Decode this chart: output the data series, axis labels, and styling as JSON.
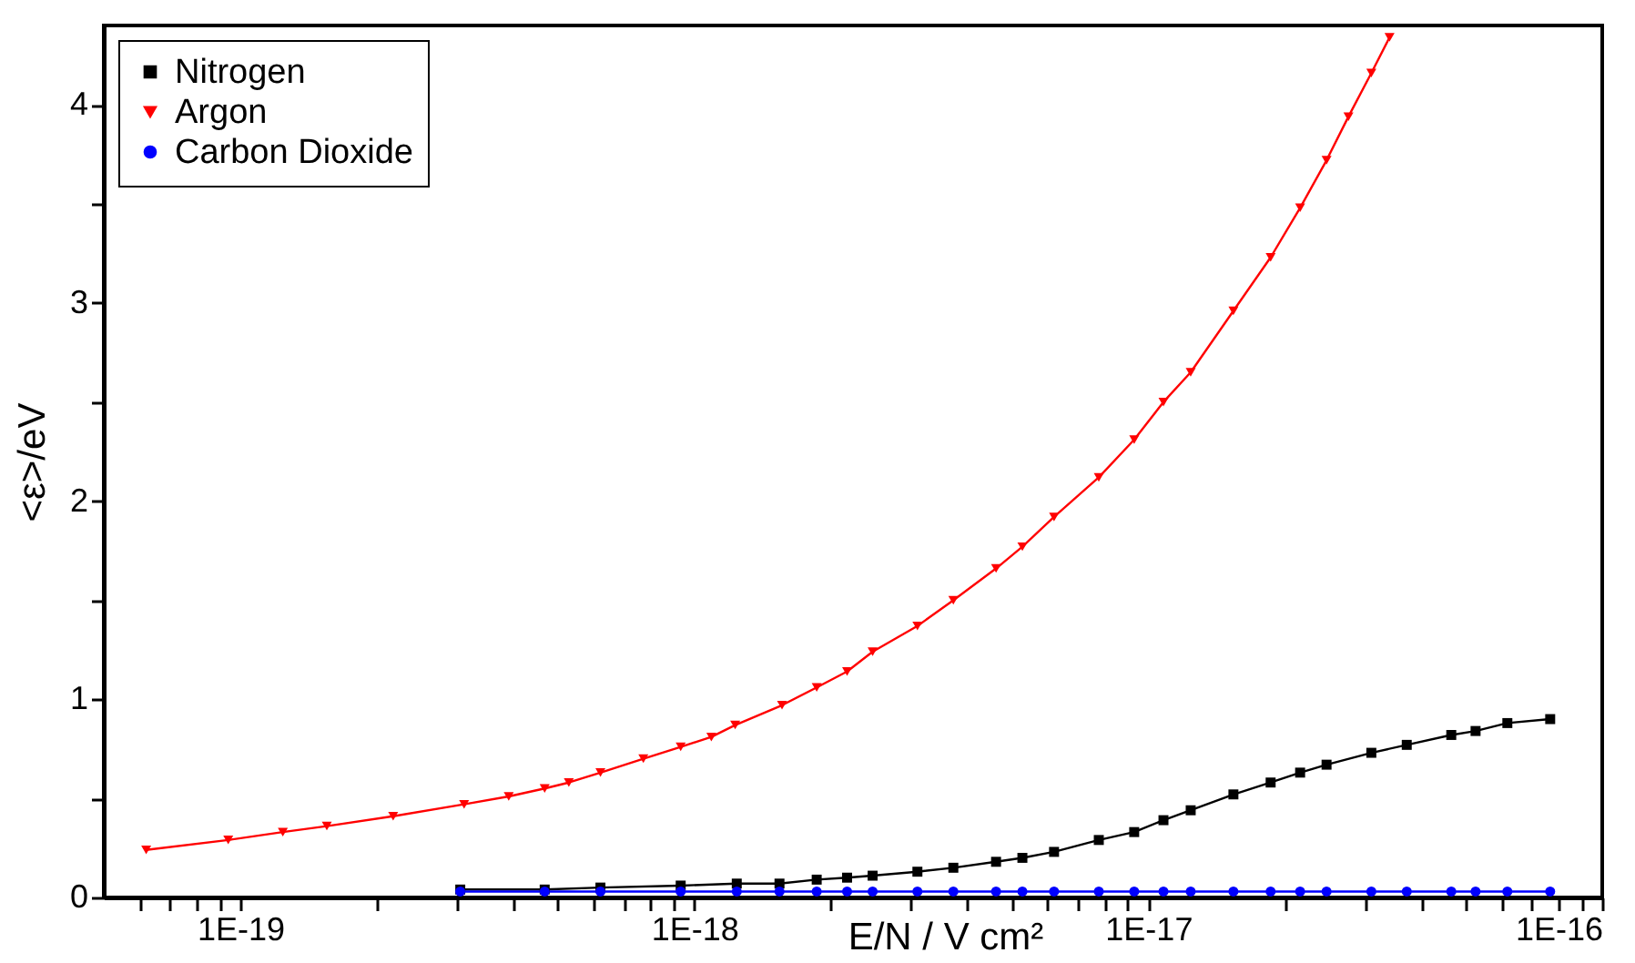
{
  "chart_data": {
    "type": "line",
    "xlabel": "E/N / V cm²",
    "ylabel": "<ε>/eV",
    "log": "x",
    "legend": "top left",
    "xlim": [
      5e-20,
      1e-16
    ],
    "ylim": [
      0,
      4.4
    ],
    "xticks": [
      {
        "value": 6e-20,
        "label": null
      },
      {
        "value": 7e-20,
        "label": null
      },
      {
        "value": 8e-20,
        "label": null
      },
      {
        "value": 9e-20,
        "label": null
      },
      {
        "value": 1e-19,
        "label": "1E-19"
      },
      {
        "value": 2e-19,
        "label": null
      },
      {
        "value": 3e-19,
        "label": null
      },
      {
        "value": 4e-19,
        "label": null
      },
      {
        "value": 5e-19,
        "label": null
      },
      {
        "value": 6e-19,
        "label": null
      },
      {
        "value": 7e-19,
        "label": null
      },
      {
        "value": 8e-19,
        "label": null
      },
      {
        "value": 9e-19,
        "label": null
      },
      {
        "value": 1e-18,
        "label": "1E-18"
      },
      {
        "value": 2e-18,
        "label": null
      },
      {
        "value": 3e-18,
        "label": null
      },
      {
        "value": 4e-18,
        "label": null
      },
      {
        "value": 5e-18,
        "label": null
      },
      {
        "value": 6e-18,
        "label": null
      },
      {
        "value": 7e-18,
        "label": null
      },
      {
        "value": 8e-18,
        "label": null
      },
      {
        "value": 9e-18,
        "label": null
      },
      {
        "value": 1e-17,
        "label": "1E-17"
      },
      {
        "value": 2e-17,
        "label": null
      },
      {
        "value": 3e-17,
        "label": null
      },
      {
        "value": 4e-17,
        "label": null
      },
      {
        "value": 5e-17,
        "label": null
      },
      {
        "value": 6e-17,
        "label": null
      },
      {
        "value": 7e-17,
        "label": null
      },
      {
        "value": 8e-17,
        "label": null
      },
      {
        "value": 9e-17,
        "label": null
      },
      {
        "value": 1e-16,
        "label": "1E-16"
      }
    ],
    "yticks": [
      0,
      {
        "value": 0.5,
        "label": null
      },
      1,
      {
        "value": 1.5,
        "label": null
      },
      2,
      {
        "value": 2.5,
        "label": null
      },
      3,
      {
        "value": 3.5,
        "label": null
      },
      4
    ],
    "series": [
      {
        "name": "Nitrogen",
        "color": "#000000",
        "marker": "square",
        "x": [
          3.05e-19,
          4.68e-19,
          6.21e-19,
          9.33e-19,
          1.24e-18,
          1.54e-18,
          1.86e-18,
          2.17e-18,
          2.47e-18,
          3.1e-18,
          3.72e-18,
          4.62e-18,
          5.28e-18,
          6.2e-18,
          7.78e-18,
          9.31e-18,
          1.08e-17,
          1.24e-17,
          1.54e-17,
          1.86e-17,
          2.16e-17,
          2.47e-17,
          3.1e-17,
          3.71e-17,
          4.65e-17,
          5.26e-17,
          6.18e-17,
          7.68e-17
        ],
        "values": [
          0.04,
          0.04,
          0.05,
          0.06,
          0.07,
          0.07,
          0.09,
          0.1,
          0.11,
          0.13,
          0.15,
          0.18,
          0.2,
          0.23,
          0.29,
          0.33,
          0.39,
          0.44,
          0.52,
          0.58,
          0.63,
          0.67,
          0.73,
          0.77,
          0.82,
          0.84,
          0.88,
          0.9
        ]
      },
      {
        "name": "Argon",
        "color": "#ff0000",
        "marker": "triangle",
        "x": [
          6.2e-20,
          9.4e-20,
          1.24e-19,
          1.55e-19,
          2.17e-19,
          3.11e-19,
          3.9e-19,
          4.68e-19,
          5.29e-19,
          6.21e-19,
          7.72e-19,
          9.33e-19,
          1.09e-18,
          1.23e-18,
          1.56e-18,
          1.86e-18,
          2.17e-18,
          2.47e-18,
          3.1e-18,
          3.72e-18,
          4.62e-18,
          5.28e-18,
          6.2e-18,
          7.78e-18,
          9.31e-18,
          1.08e-17,
          1.24e-17,
          1.54e-17,
          1.86e-17,
          2.16e-17,
          2.47e-17,
          2.76e-17,
          3.1e-17,
          3.4e-17
        ],
        "values": [
          0.24,
          0.29,
          0.33,
          0.36,
          0.41,
          0.47,
          0.51,
          0.55,
          0.58,
          0.63,
          0.7,
          0.76,
          0.81,
          0.87,
          0.97,
          1.06,
          1.14,
          1.24,
          1.37,
          1.5,
          1.66,
          1.77,
          1.92,
          2.12,
          2.31,
          2.5,
          2.65,
          2.96,
          3.23,
          3.48,
          3.72,
          3.94,
          4.16,
          4.34
        ]
      },
      {
        "name": "Carbon Dioxide",
        "color": "#0000ff",
        "marker": "circle",
        "x": [
          3.05e-19,
          4.68e-19,
          6.21e-19,
          9.33e-19,
          1.24e-18,
          1.54e-18,
          1.86e-18,
          2.17e-18,
          2.47e-18,
          3.1e-18,
          3.72e-18,
          4.62e-18,
          5.28e-18,
          6.2e-18,
          7.78e-18,
          9.31e-18,
          1.08e-17,
          1.24e-17,
          1.54e-17,
          1.86e-17,
          2.16e-17,
          2.47e-17,
          3.1e-17,
          3.71e-17,
          4.65e-17,
          5.26e-17,
          6.18e-17,
          7.68e-17
        ],
        "values": [
          0.03,
          0.03,
          0.03,
          0.03,
          0.03,
          0.03,
          0.03,
          0.03,
          0.03,
          0.03,
          0.03,
          0.03,
          0.03,
          0.03,
          0.03,
          0.03,
          0.03,
          0.03,
          0.03,
          0.03,
          0.03,
          0.03,
          0.03,
          0.03,
          0.03,
          0.03,
          0.03,
          0.03
        ]
      }
    ]
  }
}
